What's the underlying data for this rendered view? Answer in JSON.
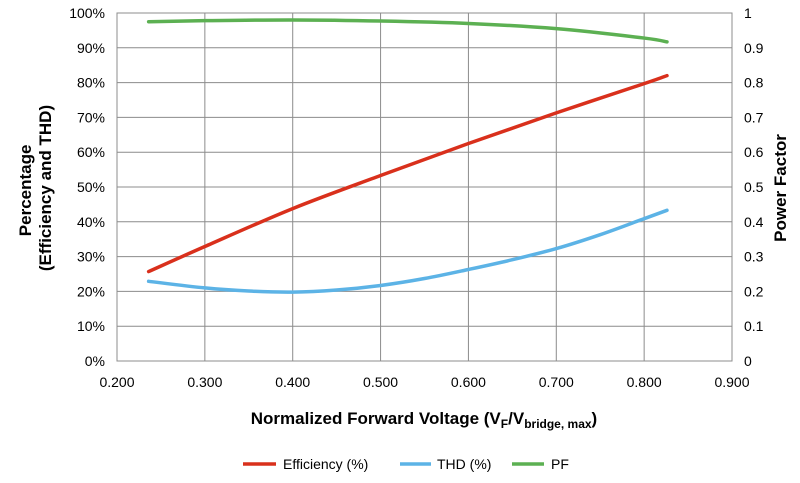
{
  "chart_data": {
    "type": "line",
    "xlabel": {
      "prefix": "Normalized Forward Voltage (V",
      "sub1": "F",
      "mid": "/V",
      "sub2": "bridge, max",
      "suffix": ")"
    },
    "ylabel_left_line1": "Percentage",
    "ylabel_left_line2": "(Efficiency and THD)",
    "ylabel_right": "Power Factor",
    "xlim": [
      0.2,
      0.9
    ],
    "ylim_left": [
      0,
      100
    ],
    "ylim_right": [
      0,
      1
    ],
    "x_ticks": [
      "0.200",
      "0.300",
      "0.400",
      "0.500",
      "0.600",
      "0.700",
      "0.800",
      "0.900"
    ],
    "y_left_ticks": [
      "0%",
      "10%",
      "20%",
      "30%",
      "40%",
      "50%",
      "60%",
      "70%",
      "80%",
      "90%",
      "100%"
    ],
    "y_right_ticks": [
      "0",
      "0.1",
      "0.2",
      "0.3",
      "0.4",
      "0.5",
      "0.6",
      "0.7",
      "0.8",
      "0.9",
      "1"
    ],
    "grid": true,
    "legend_position": "bottom",
    "series": [
      {
        "name": "Efficiency (%)",
        "axis": "left",
        "color": "#d9301c",
        "x": [
          0.236,
          0.3,
          0.4,
          0.5,
          0.6,
          0.7,
          0.8,
          0.826
        ],
        "y": [
          25.7,
          32.9,
          43.8,
          53.3,
          62.5,
          71.3,
          79.7,
          82.0
        ]
      },
      {
        "name": "THD (%)",
        "axis": "left",
        "color": "#5cb3e6",
        "x": [
          0.236,
          0.3,
          0.35,
          0.4,
          0.45,
          0.5,
          0.55,
          0.6,
          0.65,
          0.7,
          0.75,
          0.8,
          0.826
        ],
        "y": [
          22.9,
          21.0,
          20.1,
          19.8,
          20.4,
          21.7,
          23.7,
          26.3,
          29.1,
          32.3,
          36.3,
          40.9,
          43.3
        ]
      },
      {
        "name": "PF",
        "axis": "right",
        "color": "#5cb052",
        "x": [
          0.236,
          0.3,
          0.4,
          0.5,
          0.6,
          0.7,
          0.8,
          0.826
        ],
        "y": [
          0.975,
          0.978,
          0.98,
          0.977,
          0.97,
          0.955,
          0.928,
          0.917
        ]
      }
    ]
  }
}
